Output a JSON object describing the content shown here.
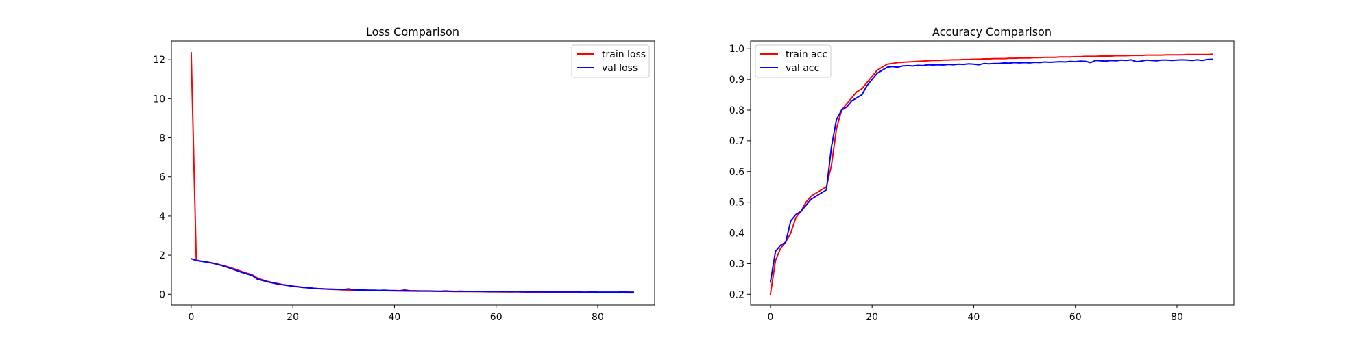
{
  "chart_data": [
    {
      "type": "line",
      "title": "Loss Comparison",
      "xlabel": "",
      "ylabel": "",
      "xlim": [
        -3.9,
        91.2
      ],
      "ylim": [
        -0.55,
        12.95
      ],
      "xticks": [
        0,
        20,
        40,
        60,
        80
      ],
      "yticks": [
        0,
        2,
        4,
        6,
        8,
        10,
        12
      ],
      "grid": false,
      "legend_position": "upper right",
      "series": [
        {
          "name": "train loss",
          "color": "#ff0000",
          "x": [
            0,
            1,
            2,
            3,
            4,
            5,
            6,
            7,
            8,
            9,
            10,
            11,
            12,
            13,
            14,
            15,
            16,
            17,
            18,
            19,
            20,
            21,
            22,
            23,
            24,
            25,
            26,
            27,
            28,
            29,
            30,
            31,
            32,
            33,
            34,
            35,
            36,
            37,
            38,
            39,
            40,
            41,
            42,
            43,
            44,
            45,
            46,
            47,
            48,
            49,
            50,
            51,
            52,
            53,
            54,
            55,
            56,
            57,
            58,
            59,
            60,
            61,
            62,
            63,
            64,
            65,
            66,
            67,
            68,
            69,
            70,
            71,
            72,
            73,
            74,
            75,
            76,
            77,
            78,
            79,
            80,
            81,
            82,
            83,
            84,
            85,
            86,
            87
          ],
          "y": [
            12.35,
            1.75,
            1.7,
            1.66,
            1.61,
            1.56,
            1.49,
            1.42,
            1.34,
            1.25,
            1.16,
            1.08,
            1.0,
            0.84,
            0.74,
            0.66,
            0.6,
            0.55,
            0.5,
            0.46,
            0.42,
            0.39,
            0.36,
            0.33,
            0.31,
            0.29,
            0.275,
            0.26,
            0.25,
            0.24,
            0.23,
            0.22,
            0.215,
            0.21,
            0.205,
            0.2,
            0.195,
            0.19,
            0.185,
            0.18,
            0.175,
            0.17,
            0.168,
            0.165,
            0.162,
            0.16,
            0.157,
            0.155,
            0.152,
            0.15,
            0.148,
            0.146,
            0.144,
            0.142,
            0.14,
            0.138,
            0.136,
            0.134,
            0.132,
            0.13,
            0.128,
            0.126,
            0.124,
            0.122,
            0.12,
            0.118,
            0.116,
            0.114,
            0.112,
            0.11,
            0.108,
            0.106,
            0.104,
            0.102,
            0.1,
            0.098,
            0.096,
            0.094,
            0.092,
            0.09,
            0.088,
            0.086,
            0.084,
            0.082,
            0.08,
            0.078,
            0.076,
            0.075
          ]
        },
        {
          "name": "val loss",
          "color": "#0000ff",
          "x": [
            0,
            1,
            2,
            3,
            4,
            5,
            6,
            7,
            8,
            9,
            10,
            11,
            12,
            13,
            14,
            15,
            16,
            17,
            18,
            19,
            20,
            21,
            22,
            23,
            24,
            25,
            26,
            27,
            28,
            29,
            30,
            31,
            32,
            33,
            34,
            35,
            36,
            37,
            38,
            39,
            40,
            41,
            42,
            43,
            44,
            45,
            46,
            47,
            48,
            49,
            50,
            51,
            52,
            53,
            54,
            55,
            56,
            57,
            58,
            59,
            60,
            61,
            62,
            63,
            64,
            65,
            66,
            67,
            68,
            69,
            70,
            71,
            72,
            73,
            74,
            75,
            76,
            77,
            78,
            79,
            80,
            81,
            82,
            83,
            84,
            85,
            86,
            87
          ],
          "y": [
            1.82,
            1.73,
            1.69,
            1.65,
            1.6,
            1.54,
            1.47,
            1.39,
            1.3,
            1.21,
            1.12,
            1.04,
            0.96,
            0.78,
            0.71,
            0.64,
            0.58,
            0.53,
            0.49,
            0.45,
            0.41,
            0.38,
            0.35,
            0.33,
            0.31,
            0.29,
            0.28,
            0.27,
            0.26,
            0.25,
            0.24,
            0.28,
            0.23,
            0.22,
            0.22,
            0.21,
            0.21,
            0.2,
            0.21,
            0.19,
            0.19,
            0.18,
            0.22,
            0.18,
            0.18,
            0.17,
            0.17,
            0.17,
            0.16,
            0.16,
            0.17,
            0.16,
            0.15,
            0.16,
            0.15,
            0.15,
            0.15,
            0.15,
            0.14,
            0.14,
            0.14,
            0.14,
            0.14,
            0.13,
            0.15,
            0.13,
            0.13,
            0.13,
            0.13,
            0.13,
            0.12,
            0.12,
            0.13,
            0.12,
            0.12,
            0.12,
            0.12,
            0.11,
            0.11,
            0.12,
            0.11,
            0.11,
            0.11,
            0.11,
            0.11,
            0.12,
            0.11,
            0.11
          ]
        }
      ]
    },
    {
      "type": "line",
      "title": "Accuracy Comparison",
      "xlabel": "",
      "ylabel": "",
      "xlim": [
        -3.9,
        91.2
      ],
      "ylim": [
        0.165,
        1.025
      ],
      "xticks": [
        0,
        20,
        40,
        60,
        80
      ],
      "yticks": [
        0.2,
        0.3,
        0.4,
        0.5,
        0.6,
        0.7,
        0.8,
        0.9,
        1.0
      ],
      "grid": false,
      "legend_position": "upper left",
      "series": [
        {
          "name": "train acc",
          "color": "#ff0000",
          "x": [
            0,
            1,
            2,
            3,
            4,
            5,
            6,
            7,
            8,
            9,
            10,
            11,
            12,
            13,
            14,
            15,
            16,
            17,
            18,
            19,
            20,
            21,
            22,
            23,
            24,
            25,
            26,
            27,
            28,
            29,
            30,
            31,
            32,
            33,
            34,
            35,
            36,
            37,
            38,
            39,
            40,
            41,
            42,
            43,
            44,
            45,
            46,
            47,
            48,
            49,
            50,
            51,
            52,
            53,
            54,
            55,
            56,
            57,
            58,
            59,
            60,
            61,
            62,
            63,
            64,
            65,
            66,
            67,
            68,
            69,
            70,
            71,
            72,
            73,
            74,
            75,
            76,
            77,
            78,
            79,
            80,
            81,
            82,
            83,
            84,
            85,
            86,
            87
          ],
          "y": [
            0.2,
            0.31,
            0.35,
            0.37,
            0.4,
            0.45,
            0.47,
            0.5,
            0.52,
            0.53,
            0.54,
            0.55,
            0.62,
            0.74,
            0.8,
            0.82,
            0.84,
            0.86,
            0.87,
            0.89,
            0.91,
            0.93,
            0.94,
            0.95,
            0.952,
            0.955,
            0.956,
            0.957,
            0.958,
            0.959,
            0.96,
            0.961,
            0.962,
            0.962,
            0.963,
            0.963,
            0.964,
            0.964,
            0.965,
            0.965,
            0.966,
            0.966,
            0.967,
            0.967,
            0.968,
            0.968,
            0.968,
            0.969,
            0.969,
            0.97,
            0.97,
            0.97,
            0.971,
            0.971,
            0.972,
            0.972,
            0.972,
            0.973,
            0.973,
            0.973,
            0.974,
            0.974,
            0.975,
            0.975,
            0.975,
            0.976,
            0.976,
            0.976,
            0.977,
            0.977,
            0.977,
            0.978,
            0.978,
            0.978,
            0.979,
            0.979,
            0.979,
            0.979,
            0.98,
            0.98,
            0.98,
            0.98,
            0.981,
            0.981,
            0.981,
            0.981,
            0.981,
            0.982
          ]
        },
        {
          "name": "val acc",
          "color": "#0000ff",
          "x": [
            0,
            1,
            2,
            3,
            4,
            5,
            6,
            7,
            8,
            9,
            10,
            11,
            12,
            13,
            14,
            15,
            16,
            17,
            18,
            19,
            20,
            21,
            22,
            23,
            24,
            25,
            26,
            27,
            28,
            29,
            30,
            31,
            32,
            33,
            34,
            35,
            36,
            37,
            38,
            39,
            40,
            41,
            42,
            43,
            44,
            45,
            46,
            47,
            48,
            49,
            50,
            51,
            52,
            53,
            54,
            55,
            56,
            57,
            58,
            59,
            60,
            61,
            62,
            63,
            64,
            65,
            66,
            67,
            68,
            69,
            70,
            71,
            72,
            73,
            74,
            75,
            76,
            77,
            78,
            79,
            80,
            81,
            82,
            83,
            84,
            85,
            86,
            87
          ],
          "y": [
            0.24,
            0.34,
            0.36,
            0.37,
            0.44,
            0.46,
            0.47,
            0.49,
            0.51,
            0.52,
            0.53,
            0.54,
            0.68,
            0.77,
            0.8,
            0.81,
            0.83,
            0.84,
            0.85,
            0.88,
            0.9,
            0.92,
            0.93,
            0.94,
            0.942,
            0.94,
            0.944,
            0.945,
            0.944,
            0.946,
            0.945,
            0.948,
            0.947,
            0.948,
            0.947,
            0.949,
            0.948,
            0.95,
            0.949,
            0.951,
            0.95,
            0.948,
            0.952,
            0.951,
            0.952,
            0.952,
            0.954,
            0.953,
            0.955,
            0.954,
            0.955,
            0.954,
            0.956,
            0.955,
            0.957,
            0.956,
            0.957,
            0.958,
            0.957,
            0.959,
            0.958,
            0.96,
            0.959,
            0.955,
            0.962,
            0.961,
            0.96,
            0.962,
            0.961,
            0.963,
            0.962,
            0.964,
            0.958,
            0.96,
            0.963,
            0.962,
            0.961,
            0.963,
            0.963,
            0.962,
            0.963,
            0.964,
            0.963,
            0.962,
            0.964,
            0.962,
            0.965,
            0.966
          ]
        }
      ]
    }
  ]
}
